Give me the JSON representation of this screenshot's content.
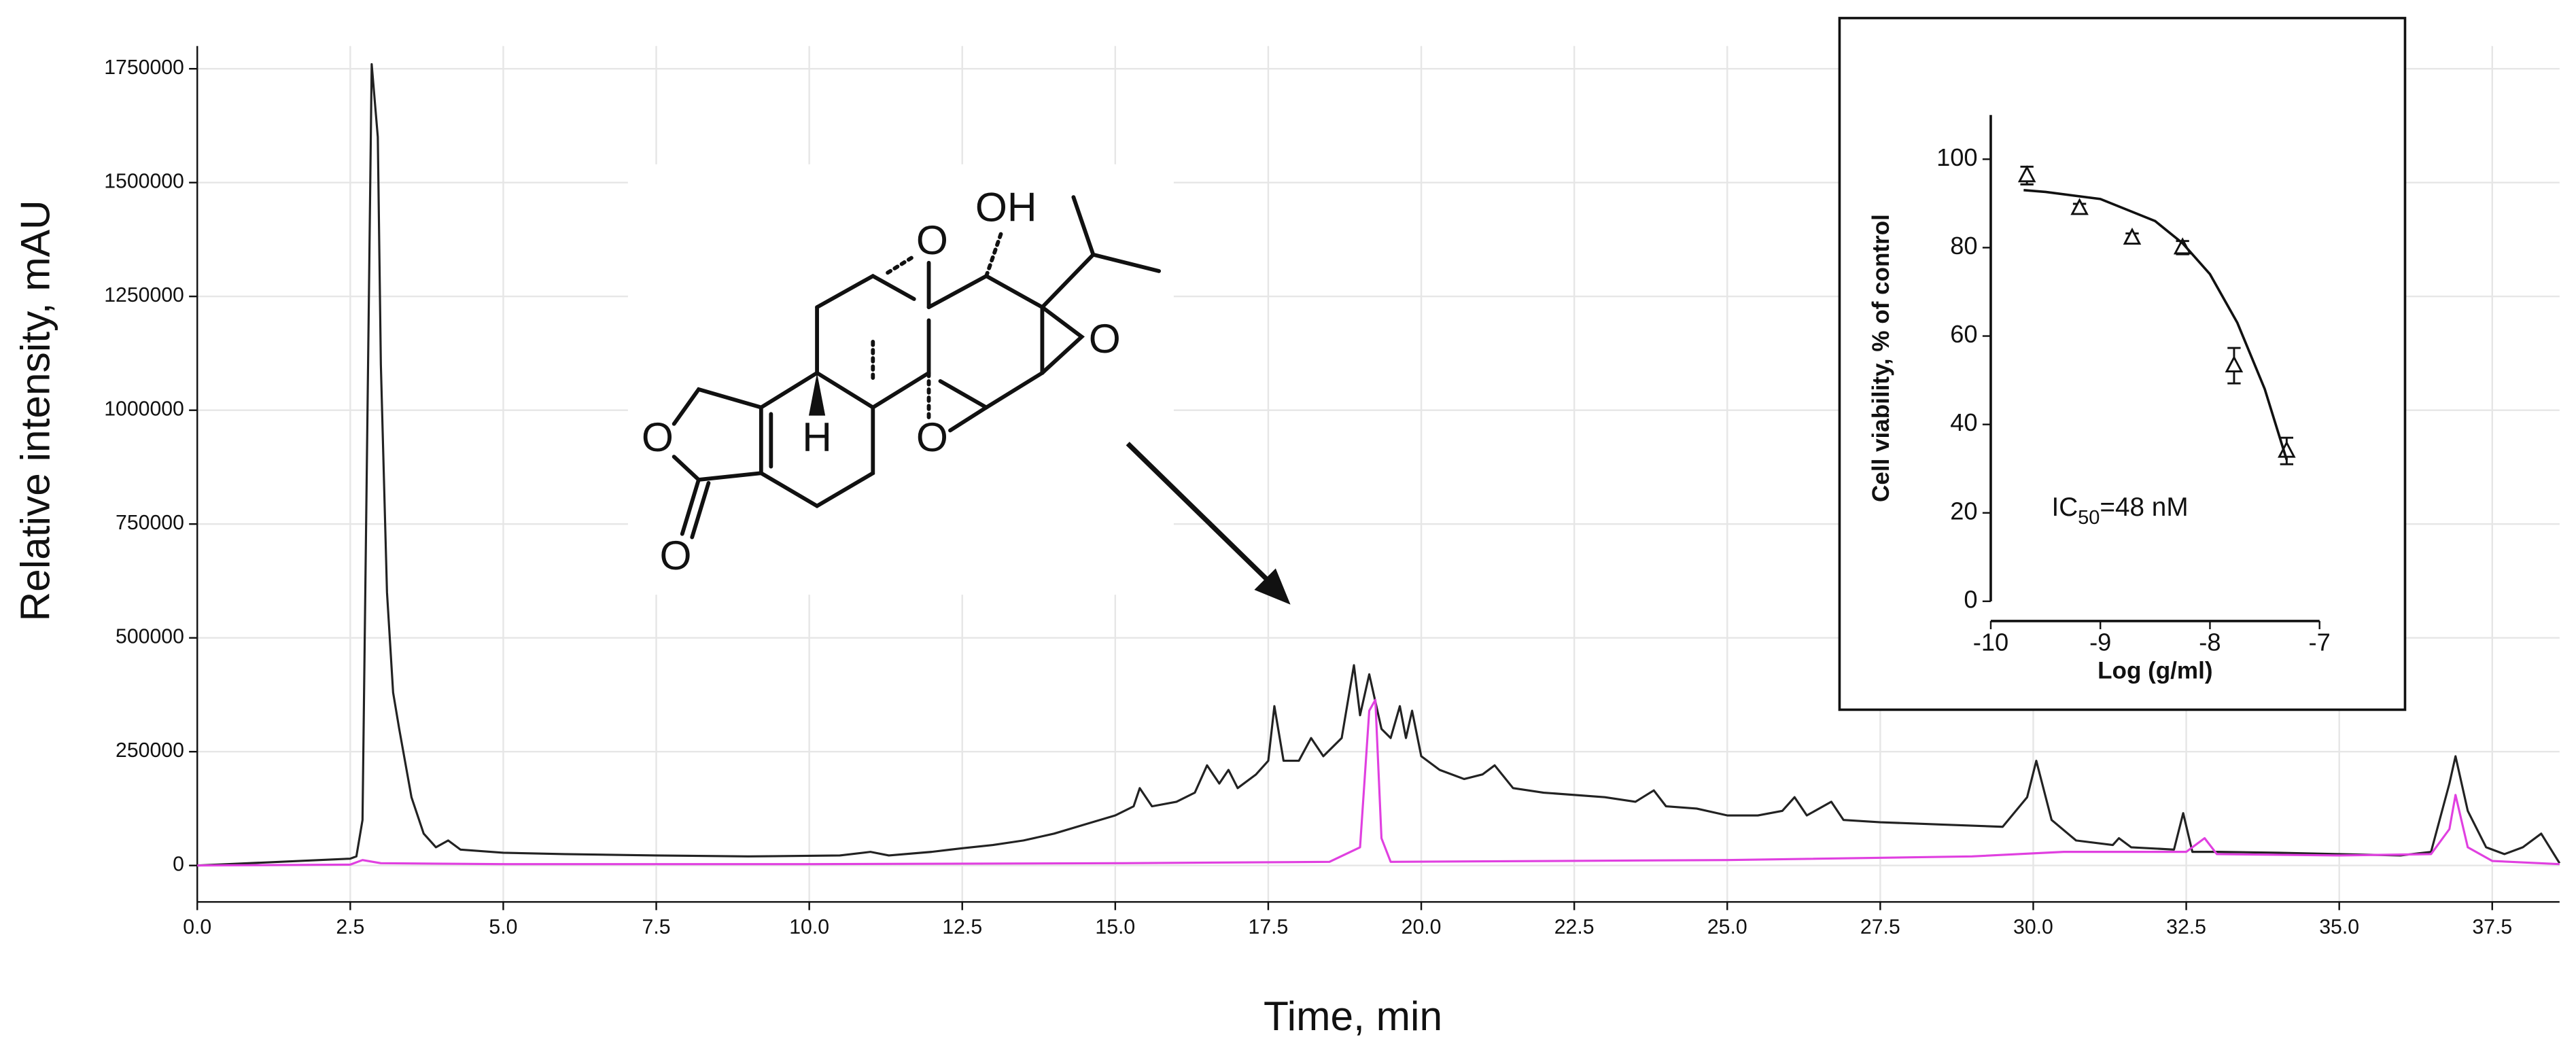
{
  "chart_data": [
    {
      "type": "line",
      "xlabel": "Time, min",
      "ylabel": "Relative intensity, mAU",
      "xlim": [
        0,
        38.6
      ],
      "ylim": [
        -80000,
        1800000
      ],
      "xticks": [
        {
          "value": 0,
          "label": "0.0"
        },
        2.5,
        {
          "value": 5,
          "label": "5.0"
        },
        7.5,
        {
          "value": 10,
          "label": "10.0"
        },
        12.5,
        {
          "value": 15,
          "label": "15.0"
        },
        17.5,
        {
          "value": 20,
          "label": "20.0"
        },
        22.5,
        {
          "value": 25,
          "label": "25.0"
        },
        27.5,
        {
          "value": 30,
          "label": "30.0"
        },
        32.5,
        {
          "value": 35,
          "label": "35.0"
        },
        37.5
      ],
      "yticks": [
        0,
        250000,
        500000,
        750000,
        1000000,
        1250000,
        1500000,
        1750000
      ],
      "grid": true,
      "series": [
        {
          "color": "#222222",
          "x": [
            0,
            2.5,
            2.6,
            2.7,
            2.8,
            2.85,
            2.95,
            3.0,
            3.1,
            3.2,
            3.3,
            3.5,
            3.7,
            3.9,
            4.1,
            4.3,
            5.0,
            6.0,
            7.5,
            9.0,
            10.5,
            11.0,
            11.3,
            12.0,
            12.5,
            13.0,
            13.5,
            14.0,
            14.5,
            15.0,
            15.3,
            15.4,
            15.6,
            16.0,
            16.3,
            16.5,
            16.7,
            16.85,
            17.0,
            17.3,
            17.5,
            17.6,
            17.75,
            18.0,
            18.2,
            18.4,
            18.7,
            18.9,
            19.0,
            19.15,
            19.35,
            19.5,
            19.65,
            19.75,
            19.85,
            20.0,
            20.3,
            20.7,
            21.0,
            21.2,
            21.5,
            22.0,
            23.0,
            23.5,
            23.8,
            24.0,
            24.5,
            25.0,
            25.5,
            25.9,
            26.1,
            26.3,
            26.7,
            26.9,
            27.5,
            28.5,
            29.5,
            29.9,
            30.05,
            30.3,
            30.7,
            31.3,
            31.4,
            31.6,
            32.3,
            32.45,
            32.6,
            33.0,
            34.0,
            35.0,
            36.0,
            36.5,
            36.8,
            36.9,
            37.1,
            37.4,
            37.7,
            38.0,
            38.3,
            38.6
          ],
          "values": [
            0,
            15000,
            20000,
            100000,
            1200000,
            1760000,
            1600000,
            1100000,
            600000,
            380000,
            300000,
            150000,
            70000,
            40000,
            55000,
            35000,
            28000,
            25000,
            22000,
            20000,
            22000,
            30000,
            22000,
            30000,
            38000,
            45000,
            55000,
            70000,
            90000,
            110000,
            130000,
            170000,
            130000,
            140000,
            160000,
            220000,
            180000,
            210000,
            170000,
            200000,
            230000,
            350000,
            230000,
            230000,
            280000,
            240000,
            280000,
            440000,
            330000,
            420000,
            300000,
            280000,
            350000,
            280000,
            340000,
            240000,
            210000,
            190000,
            200000,
            220000,
            170000,
            160000,
            150000,
            140000,
            165000,
            130000,
            125000,
            110000,
            110000,
            120000,
            150000,
            110000,
            140000,
            100000,
            95000,
            90000,
            85000,
            150000,
            230000,
            100000,
            55000,
            45000,
            60000,
            40000,
            35000,
            115000,
            30000,
            30000,
            28000,
            25000,
            22000,
            30000,
            180000,
            240000,
            120000,
            40000,
            25000,
            40000,
            70000,
            5000
          ]
        },
        {
          "color": "#e040e0",
          "x": [
            0,
            2.5,
            2.7,
            3.0,
            5.0,
            10.0,
            15.0,
            18.5,
            19.0,
            19.15,
            19.25,
            19.35,
            19.5,
            25.0,
            29.0,
            30.5,
            32.0,
            32.5,
            32.8,
            33.0,
            35.0,
            36.5,
            36.8,
            36.9,
            37.1,
            37.5,
            38.6
          ],
          "values": [
            0,
            2000,
            12000,
            5000,
            3000,
            3000,
            5000,
            8000,
            40000,
            340000,
            364000,
            60000,
            8000,
            12000,
            20000,
            30000,
            30000,
            30000,
            60000,
            25000,
            22000,
            25000,
            80000,
            155000,
            40000,
            10000,
            3000
          ]
        }
      ]
    },
    {
      "type": "scatter",
      "xlabel": "Log (g/ml)",
      "ylabel": "Cell viability, % of control",
      "annotation": [
        "IC",
        "50",
        "=48 nM"
      ],
      "xlim": [
        -10,
        -7
      ],
      "ylim": [
        0,
        110
      ],
      "xticks": [
        -10,
        -9,
        -8,
        -7
      ],
      "yticks": [
        0,
        20,
        40,
        60,
        80,
        100
      ],
      "grid": false,
      "series": [
        {
          "color": "#111111",
          "marker": "triangle",
          "x": [
            -9.67,
            -9.19,
            -8.71,
            -8.25,
            -7.78,
            -7.3
          ],
          "values": [
            96.3,
            88.9,
            82.2,
            80,
            53.3,
            34
          ],
          "errors": [
            2,
            1,
            1,
            1.5,
            4,
            3
          ]
        },
        {
          "color": "#111111",
          "marker": "none",
          "x": [
            -9.7,
            -9.5,
            -9.0,
            -8.5,
            -8.25,
            -8.0,
            -7.75,
            -7.5,
            -7.3
          ],
          "values": [
            93,
            92.6,
            91,
            86,
            81,
            74,
            63,
            48,
            32
          ]
        }
      ]
    }
  ],
  "structure": {
    "atoms": [
      "OH",
      "O",
      "O",
      "H",
      "O",
      "O",
      "O"
    ]
  }
}
